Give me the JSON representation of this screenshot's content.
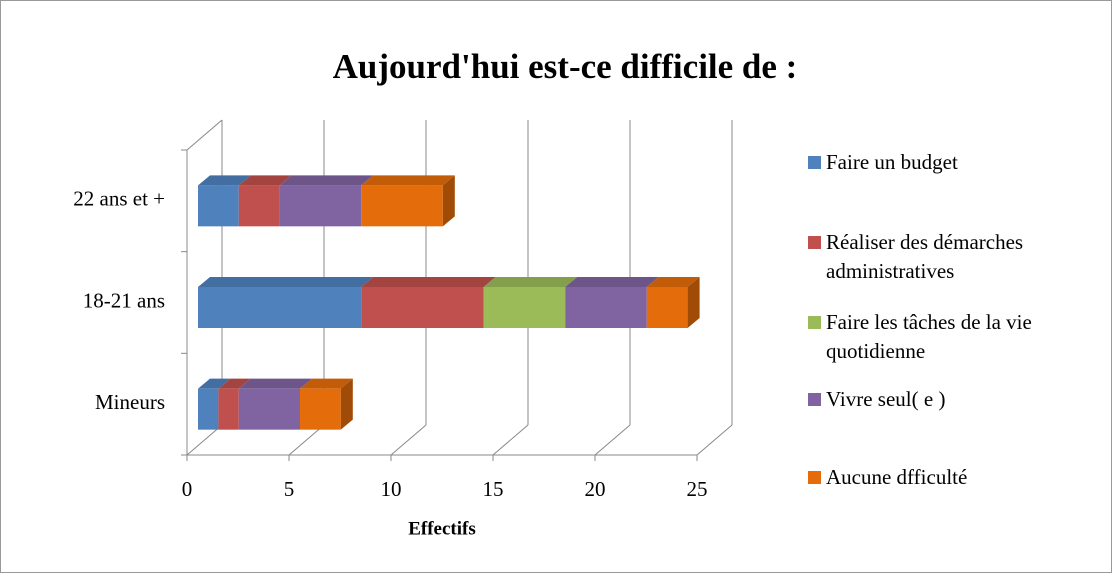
{
  "chart_data": {
    "type": "bar3d_stacked_horizontal",
    "title": "Aujourd'hui est-ce difficile de :",
    "x_label": "Effectifs",
    "categories": [
      "Mineurs",
      "18-21 ans",
      "22 ans et +"
    ],
    "series": [
      {
        "name": "Faire un budget",
        "color": "#4f81bd",
        "values": [
          1,
          8,
          2
        ]
      },
      {
        "name": "Réaliser des démarches administratives",
        "color": "#c0504d",
        "values": [
          1,
          6,
          2
        ]
      },
      {
        "name": "Faire les tâches de la vie quotidienne",
        "color": "#9bbb59",
        "values": [
          0,
          4,
          0
        ]
      },
      {
        "name": "Vivre seul( e )",
        "color": "#8064a2",
        "values": [
          3,
          4,
          4
        ]
      },
      {
        "name": "Aucune dfficulté",
        "color": "#e46c0a",
        "values": [
          2,
          2,
          4
        ]
      }
    ],
    "xlim": [
      0,
      25
    ],
    "xticks": [
      0,
      5,
      10,
      15,
      20,
      25
    ],
    "grid": true,
    "legend": "right"
  }
}
